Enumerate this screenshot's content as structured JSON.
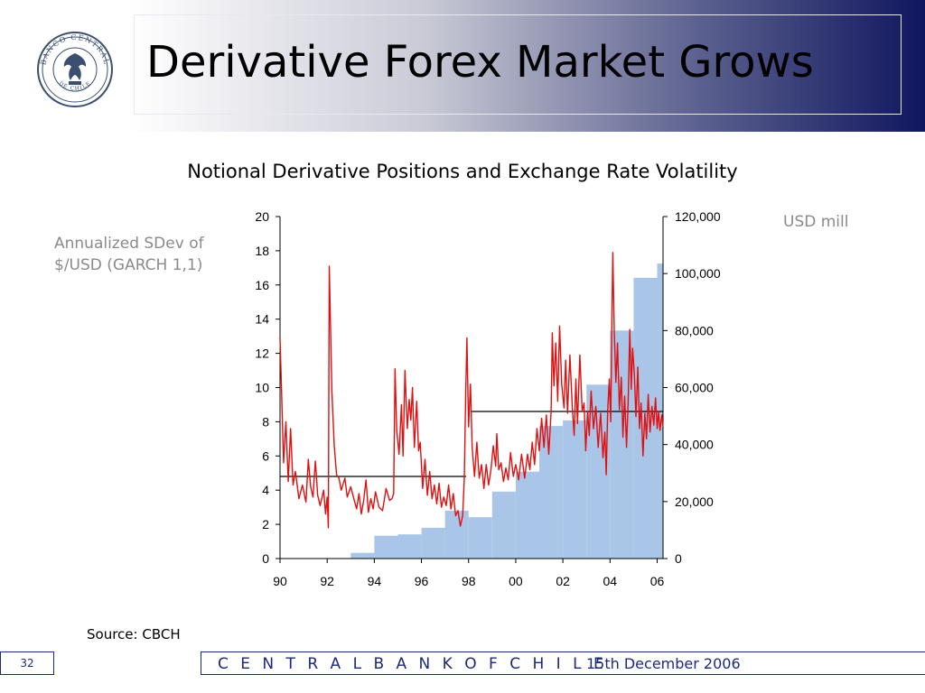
{
  "slide": {
    "title": "Derivative Forex Market Grows",
    "source": "Source: CBCH",
    "page_number": "32",
    "footer_org": "C E N T R A L  B A N K  O F  C H I L E",
    "footer_date": "15th December 2006"
  },
  "logo": {
    "icon": "central-bank-seal-icon",
    "text_top": "BANCO CENTRAL",
    "text_bottom": "DE CHILE"
  },
  "colors": {
    "header_gradient_end": "#10165e",
    "footer_blue": "#1b2a78",
    "bars": "#a9c6e8",
    "volatility_line": "#e01010",
    "average_line": "#000000"
  },
  "chart_data": {
    "type": "bar+line",
    "title": "Notional Derivative Positions and Exchange Rate Volatility",
    "ylabel_left": "Annualized SDev of $/USD (GARCH 1,1)",
    "ylabel_right": "USD mill",
    "x_ticks": [
      "90",
      "92",
      "94",
      "96",
      "98",
      "00",
      "02",
      "04",
      "06"
    ],
    "x_range": [
      1990.0,
      2006.25
    ],
    "y_left_range": [
      0,
      20
    ],
    "y_left_ticks": [
      "0",
      "2",
      "4",
      "6",
      "8",
      "10",
      "12",
      "14",
      "16",
      "18",
      "20"
    ],
    "y_right_range": [
      0,
      120000
    ],
    "y_right_ticks": [
      "0",
      "20,000",
      "40,000",
      "60,000",
      "80,000",
      "100,000",
      "120,000"
    ],
    "bars": {
      "name": "Notional derivative positions (USD mill)",
      "axis": "right",
      "data": [
        {
          "start": 1993.0,
          "end": 1994.0,
          "value": 2000
        },
        {
          "start": 1994.0,
          "end": 1995.0,
          "value": 8000
        },
        {
          "start": 1995.0,
          "end": 1996.0,
          "value": 8500
        },
        {
          "start": 1996.0,
          "end": 1997.0,
          "value": 10800
        },
        {
          "start": 1997.0,
          "end": 1998.0,
          "value": 16800
        },
        {
          "start": 1998.0,
          "end": 1999.0,
          "value": 14500
        },
        {
          "start": 1999.0,
          "end": 2000.0,
          "value": 23500
        },
        {
          "start": 2000.0,
          "end": 2001.0,
          "value": 30500
        },
        {
          "start": 2001.0,
          "end": 2002.0,
          "value": 46500
        },
        {
          "start": 2002.0,
          "end": 2003.0,
          "value": 48500
        },
        {
          "start": 2003.0,
          "end": 2004.0,
          "value": 61000
        },
        {
          "start": 2004.0,
          "end": 2005.0,
          "value": 80000
        },
        {
          "start": 2005.0,
          "end": 2006.0,
          "value": 98500
        },
        {
          "start": 2006.0,
          "end": 2006.25,
          "value": 103500
        }
      ]
    },
    "volatility": {
      "name": "Exchange rate volatility",
      "axis": "left",
      "points": [
        [
          1990.0,
          12.9
        ],
        [
          1990.08,
          9.0
        ],
        [
          1990.15,
          5.6
        ],
        [
          1990.25,
          8.0
        ],
        [
          1990.35,
          4.5
        ],
        [
          1990.45,
          7.6
        ],
        [
          1990.55,
          4.3
        ],
        [
          1990.65,
          5.1
        ],
        [
          1990.8,
          3.5
        ],
        [
          1990.95,
          4.3
        ],
        [
          1991.1,
          3.3
        ],
        [
          1991.2,
          5.8
        ],
        [
          1991.3,
          4.2
        ],
        [
          1991.4,
          3.6
        ],
        [
          1991.5,
          5.7
        ],
        [
          1991.6,
          3.7
        ],
        [
          1991.7,
          3.1
        ],
        [
          1991.85,
          4.0
        ],
        [
          1991.93,
          2.6
        ],
        [
          1992.0,
          3.6
        ],
        [
          1992.05,
          1.8
        ],
        [
          1992.09,
          17.1
        ],
        [
          1992.2,
          9.8
        ],
        [
          1992.3,
          6.6
        ],
        [
          1992.4,
          4.9
        ],
        [
          1992.5,
          4.7
        ],
        [
          1992.6,
          4.0
        ],
        [
          1992.75,
          4.7
        ],
        [
          1992.85,
          3.6
        ],
        [
          1993.0,
          4.2
        ],
        [
          1993.15,
          3.4
        ],
        [
          1993.25,
          2.9
        ],
        [
          1993.35,
          3.8
        ],
        [
          1993.45,
          2.6
        ],
        [
          1993.55,
          3.4
        ],
        [
          1993.65,
          4.6
        ],
        [
          1993.75,
          2.7
        ],
        [
          1993.85,
          3.5
        ],
        [
          1993.95,
          2.9
        ],
        [
          1994.05,
          3.9
        ],
        [
          1994.2,
          3.0
        ],
        [
          1994.35,
          2.8
        ],
        [
          1994.5,
          4.1
        ],
        [
          1994.65,
          3.4
        ],
        [
          1994.75,
          3.5
        ],
        [
          1994.82,
          3.8
        ],
        [
          1994.88,
          11.1
        ],
        [
          1994.95,
          7.5
        ],
        [
          1995.05,
          6.1
        ],
        [
          1995.15,
          9.0
        ],
        [
          1995.22,
          6.0
        ],
        [
          1995.3,
          11.0
        ],
        [
          1995.4,
          7.6
        ],
        [
          1995.48,
          9.3
        ],
        [
          1995.55,
          8.1
        ],
        [
          1995.62,
          10.0
        ],
        [
          1995.7,
          6.5
        ],
        [
          1995.8,
          9.2
        ],
        [
          1995.88,
          6.3
        ],
        [
          1995.95,
          6.8
        ],
        [
          1996.05,
          4.1
        ],
        [
          1996.15,
          5.8
        ],
        [
          1996.25,
          3.7
        ],
        [
          1996.35,
          5.1
        ],
        [
          1996.45,
          3.5
        ],
        [
          1996.55,
          4.3
        ],
        [
          1996.65,
          3.2
        ],
        [
          1996.75,
          4.4
        ],
        [
          1996.85,
          3.0
        ],
        [
          1996.95,
          3.6
        ],
        [
          1997.05,
          3.1
        ],
        [
          1997.15,
          4.3
        ],
        [
          1997.25,
          2.9
        ],
        [
          1997.35,
          3.8
        ],
        [
          1997.45,
          2.5
        ],
        [
          1997.55,
          2.8
        ],
        [
          1997.65,
          1.9
        ],
        [
          1997.75,
          2.5
        ],
        [
          1997.82,
          4.7
        ],
        [
          1997.88,
          9.8
        ],
        [
          1997.93,
          12.9
        ],
        [
          1998.0,
          7.7
        ],
        [
          1998.08,
          10.2
        ],
        [
          1998.15,
          6.5
        ],
        [
          1998.25,
          4.8
        ],
        [
          1998.35,
          6.8
        ],
        [
          1998.45,
          4.7
        ],
        [
          1998.55,
          5.5
        ],
        [
          1998.65,
          4.1
        ],
        [
          1998.75,
          5.5
        ],
        [
          1998.85,
          4.3
        ],
        [
          1998.95,
          5.2
        ],
        [
          1999.05,
          6.6
        ],
        [
          1999.15,
          5.4
        ],
        [
          1999.2,
          7.3
        ],
        [
          1999.28,
          5.2
        ],
        [
          1999.38,
          5.6
        ],
        [
          1999.48,
          4.5
        ],
        [
          1999.58,
          5.3
        ],
        [
          1999.68,
          4.6
        ],
        [
          1999.78,
          6.2
        ],
        [
          1999.9,
          4.8
        ],
        [
          2000.0,
          5.5
        ],
        [
          2000.12,
          4.6
        ],
        [
          2000.25,
          6.1
        ],
        [
          2000.38,
          4.7
        ],
        [
          2000.5,
          6.1
        ],
        [
          2000.6,
          5.2
        ],
        [
          2000.7,
          6.8
        ],
        [
          2000.8,
          5.5
        ],
        [
          2000.9,
          7.6
        ],
        [
          2001.0,
          6.3
        ],
        [
          2001.1,
          8.2
        ],
        [
          2001.2,
          6.5
        ],
        [
          2001.3,
          8.4
        ],
        [
          2001.4,
          6.1
        ],
        [
          2001.5,
          8.6
        ],
        [
          2001.55,
          13.2
        ],
        [
          2001.62,
          10.1
        ],
        [
          2001.7,
          12.6
        ],
        [
          2001.78,
          9.2
        ],
        [
          2001.86,
          13.6
        ],
        [
          2001.95,
          10.2
        ],
        [
          2002.05,
          8.8
        ],
        [
          2002.12,
          11.6
        ],
        [
          2002.2,
          8.5
        ],
        [
          2002.3,
          11.9
        ],
        [
          2002.4,
          8.9
        ],
        [
          2002.48,
          7.2
        ],
        [
          2002.55,
          10.5
        ],
        [
          2002.62,
          7.9
        ],
        [
          2002.72,
          11.9
        ],
        [
          2002.82,
          8.6
        ],
        [
          2002.9,
          9.1
        ],
        [
          2002.97,
          6.3
        ],
        [
          2003.05,
          8.6
        ],
        [
          2003.12,
          7.2
        ],
        [
          2003.2,
          9.8
        ],
        [
          2003.3,
          7.6
        ],
        [
          2003.4,
          8.9
        ],
        [
          2003.5,
          6.5
        ],
        [
          2003.6,
          8.5
        ],
        [
          2003.7,
          5.9
        ],
        [
          2003.78,
          7.4
        ],
        [
          2003.84,
          4.9
        ],
        [
          2003.9,
          8.6
        ],
        [
          2003.97,
          10.5
        ],
        [
          2004.03,
          8.0
        ],
        [
          2004.08,
          14.1
        ],
        [
          2004.12,
          17.9
        ],
        [
          2004.18,
          13.3
        ],
        [
          2004.25,
          10.3
        ],
        [
          2004.32,
          12.6
        ],
        [
          2004.4,
          8.7
        ],
        [
          2004.48,
          10.6
        ],
        [
          2004.55,
          7.1
        ],
        [
          2004.62,
          9.5
        ],
        [
          2004.7,
          6.5
        ],
        [
          2004.77,
          9.2
        ],
        [
          2004.84,
          13.4
        ],
        [
          2004.9,
          9.9
        ],
        [
          2004.96,
          12.3
        ],
        [
          2005.03,
          10.8
        ],
        [
          2005.1,
          8.3
        ],
        [
          2005.18,
          11.2
        ],
        [
          2005.25,
          7.6
        ],
        [
          2005.32,
          9.1
        ],
        [
          2005.4,
          6.0
        ],
        [
          2005.48,
          8.5
        ],
        [
          2005.55,
          7.0
        ],
        [
          2005.62,
          9.6
        ],
        [
          2005.7,
          7.4
        ],
        [
          2005.78,
          8.9
        ],
        [
          2005.86,
          7.8
        ],
        [
          2005.93,
          9.4
        ],
        [
          2006.0,
          7.6
        ],
        [
          2006.06,
          8.6
        ],
        [
          2006.12,
          7.5
        ],
        [
          2006.2,
          8.4
        ],
        [
          2006.25,
          7.7
        ]
      ]
    },
    "averages": [
      {
        "start": 1990.0,
        "end": 1997.9,
        "value": 4.8
      },
      {
        "start": 1998.1,
        "end": 2006.25,
        "value": 8.6
      }
    ]
  }
}
